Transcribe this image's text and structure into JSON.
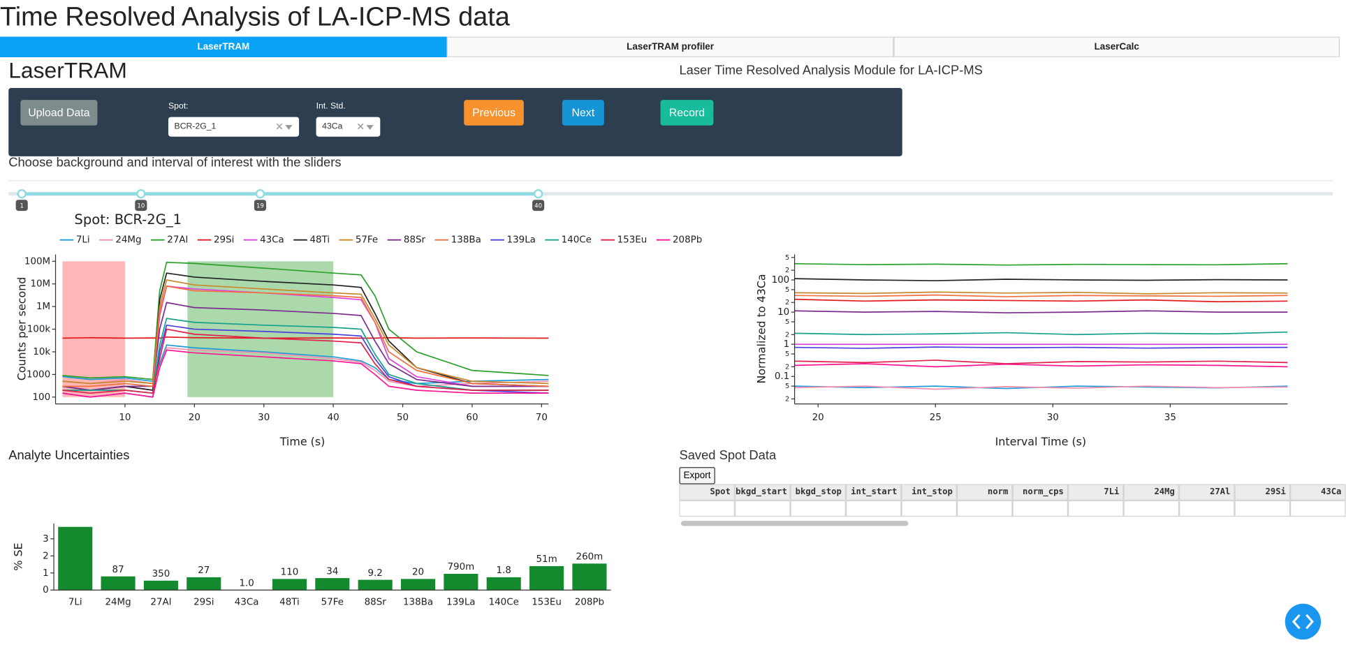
{
  "header": {
    "title": "Time Resolved Analysis of LA-ICP-MS data"
  },
  "tabs": [
    "LaserTRAM",
    "LaserTRAM profiler",
    "LaserCalc"
  ],
  "active_tab": 0,
  "module": {
    "title": "LaserTRAM",
    "subtitle": "Laser Time Resolved Analysis Module for LA-ICP-MS"
  },
  "controls": {
    "upload": "Upload Data",
    "spot_label": "Spot:",
    "spot_value": "BCR-2G_1",
    "int_std_label": "Int. Std.",
    "int_std_value": "43Ca",
    "previous": "Previous",
    "next": "Next",
    "record": "Record"
  },
  "slider": {
    "instruction": "Choose background and interval of interest with the sliders",
    "range": [
      0,
      100
    ],
    "handles": [
      1,
      10,
      19,
      40
    ]
  },
  "chart_data": [
    {
      "type": "line",
      "title": "Spot: BCR-2G_1",
      "x_label": "Time (s)",
      "y_label": "Counts per second",
      "log_y": true,
      "x": [
        1,
        5,
        10,
        14,
        15,
        16,
        20,
        30,
        40,
        44,
        46,
        48,
        52,
        60,
        71
      ],
      "xlim": [
        0,
        71
      ],
      "xticks": [
        10,
        20,
        30,
        40,
        50,
        60,
        70
      ],
      "ylim": [
        50,
        200000000
      ],
      "yticks": [
        100,
        1000,
        {
          "value": 10000,
          "label": "10k"
        },
        {
          "value": 100000,
          "label": "100k"
        },
        {
          "value": 1000000,
          "label": "1M"
        },
        {
          "value": 10000000,
          "label": "10M"
        },
        {
          "value": 100000000,
          "label": "100M"
        }
      ],
      "shaded_regions": [
        {
          "x": [
            1,
            10
          ],
          "color": "#ffb6b6"
        },
        {
          "x": [
            19,
            40
          ],
          "color": "#acd9ac"
        }
      ],
      "series": [
        {
          "name": "7Li",
          "color": "#1f9bd7",
          "values": [
            800,
            600,
            700,
            500,
            3000,
            20000,
            15000,
            10000,
            6000,
            4000,
            2000,
            600,
            400,
            500,
            600
          ]
        },
        {
          "name": "24Mg",
          "color": "#f48fb1",
          "values": [
            500,
            400,
            600,
            400,
            2000,
            15000,
            12000,
            9000,
            5000,
            3500,
            1500,
            500,
            300,
            400,
            500
          ]
        },
        {
          "name": "27Al",
          "color": "#2ca02c",
          "values": [
            900,
            700,
            800,
            600,
            5000000,
            90000000,
            80000000,
            50000000,
            30000000,
            25000000,
            3000000,
            100000,
            10000,
            1500,
            900
          ]
        },
        {
          "name": "29Si",
          "color": "#e3191c",
          "values": [
            40000,
            42000,
            40000,
            41000,
            40000,
            45000,
            42000,
            40000,
            41000,
            40000,
            40000,
            42000,
            40000,
            41000,
            40000
          ]
        },
        {
          "name": "43Ca",
          "color": "#e040e0",
          "values": [
            300,
            200,
            300,
            200,
            400000,
            8000000,
            6000000,
            4000000,
            2500000,
            2000000,
            200000,
            5000,
            800,
            300,
            300
          ]
        },
        {
          "name": "48Ti",
          "color": "#222222",
          "values": [
            300,
            200,
            300,
            200,
            2000000,
            30000000,
            20000000,
            13000000,
            9000000,
            7000000,
            500000,
            30000,
            2000,
            400,
            300
          ]
        },
        {
          "name": "57Fe",
          "color": "#c8872a",
          "values": [
            500,
            400,
            500,
            400,
            1000000,
            15000000,
            9000000,
            6000000,
            4000000,
            3500000,
            300000,
            20000,
            2000,
            500,
            400
          ]
        },
        {
          "name": "88Sr",
          "color": "#7b2d8e",
          "values": [
            300,
            200,
            300,
            300,
            100000,
            1500000,
            900000,
            700000,
            500000,
            400000,
            30000,
            3000,
            600,
            300,
            300
          ]
        },
        {
          "name": "138Ba",
          "color": "#f07040",
          "values": [
            300,
            300,
            400,
            300,
            600000,
            8000000,
            5000000,
            4000000,
            3000000,
            2500000,
            200000,
            10000,
            1500,
            400,
            300
          ]
        },
        {
          "name": "139La",
          "color": "#4a3fe0",
          "values": [
            150,
            100,
            150,
            100,
            10000,
            150000,
            100000,
            80000,
            60000,
            50000,
            5000,
            800,
            300,
            200,
            150
          ]
        },
        {
          "name": "140Ce",
          "color": "#17a08e",
          "values": [
            200,
            200,
            200,
            150,
            20000,
            300000,
            200000,
            150000,
            120000,
            100000,
            8000,
            1000,
            400,
            200,
            200
          ]
        },
        {
          "name": "153Eu",
          "color": "#e0204a",
          "values": [
            200,
            150,
            200,
            150,
            5000,
            100000,
            60000,
            40000,
            30000,
            25000,
            3000,
            600,
            300,
            200,
            200
          ]
        },
        {
          "name": "208Pb",
          "color": "#ff1493",
          "values": [
            150,
            100,
            150,
            100,
            2000,
            12000,
            9000,
            6000,
            4000,
            3000,
            1000,
            300,
            200,
            150,
            150
          ]
        }
      ]
    },
    {
      "type": "line",
      "x_label": "Interval Time (s)",
      "y_label": "Normalized to 43Ca",
      "log_y": true,
      "x": [
        19,
        22,
        25,
        28,
        31,
        34,
        37,
        40
      ],
      "xlim": [
        19,
        40
      ],
      "xticks": [
        20,
        25,
        30,
        35
      ],
      "ylim": [
        0.014,
        620
      ],
      "yticks": [
        {
          "value": 500,
          "label": "5"
        },
        {
          "value": 200,
          "label": "2"
        },
        100,
        {
          "value": 50,
          "label": "5"
        },
        {
          "value": 20,
          "label": "2"
        },
        10,
        5,
        2,
        1,
        {
          "value": 0.5,
          "label": "5"
        },
        {
          "value": 0.2,
          "label": "2"
        },
        0.1,
        {
          "value": 0.05,
          "label": "5"
        },
        {
          "value": 0.02,
          "label": "2"
        }
      ],
      "series": [
        {
          "color": "#1f9bd7",
          "values": [
            0.05,
            0.045,
            0.05,
            0.042,
            0.05,
            0.047,
            0.044,
            0.05
          ]
        },
        {
          "color": "#f48fb1",
          "values": [
            0.045,
            0.05,
            0.04,
            0.048,
            0.043,
            0.05,
            0.045,
            0.047
          ]
        },
        {
          "color": "#2ca02c",
          "values": [
            320,
            300,
            310,
            290,
            305,
            300,
            295,
            320
          ]
        },
        {
          "color": "#e3191c",
          "values": [
            25,
            22,
            24,
            23,
            22,
            24,
            21,
            22
          ]
        },
        {
          "color": "#e040e0",
          "values": [
            1,
            1,
            1,
            1,
            1,
            1,
            1,
            1
          ]
        },
        {
          "color": "#222222",
          "values": [
            110,
            100,
            95,
            105,
            100,
            98,
            102,
            100
          ]
        },
        {
          "color": "#c8872a",
          "values": [
            40,
            38,
            42,
            39,
            41,
            37,
            40,
            39
          ]
        },
        {
          "color": "#7b2d8e",
          "values": [
            11,
            10,
            10.5,
            9.5,
            10,
            11,
            10,
            10
          ]
        },
        {
          "color": "#f07040",
          "values": [
            33,
            31,
            34,
            30,
            33,
            32,
            31,
            33
          ]
        },
        {
          "color": "#4a3fe0",
          "values": [
            0.8,
            0.75,
            0.82,
            0.78,
            0.8,
            0.76,
            0.79,
            0.8
          ]
        },
        {
          "color": "#17a08e",
          "values": [
            2.2,
            2.0,
            2.1,
            2.3,
            2.0,
            2.2,
            2.1,
            2.4
          ]
        },
        {
          "color": "#e0204a",
          "values": [
            0.3,
            0.27,
            0.32,
            0.25,
            0.29,
            0.28,
            0.3,
            0.27
          ]
        },
        {
          "color": "#ff1493",
          "values": [
            0.22,
            0.25,
            0.2,
            0.24,
            0.21,
            0.23,
            0.22,
            0.2
          ]
        }
      ]
    },
    {
      "type": "bar",
      "title": "Analyte Uncertainties",
      "y_label": "% SE",
      "categories": [
        "7Li",
        "24Mg",
        "27Al",
        "29Si",
        "43Ca",
        "48Ti",
        "57Fe",
        "88Sr",
        "138Ba",
        "139La",
        "140Ce",
        "153Eu",
        "208Pb"
      ],
      "values": [
        3.7,
        0.8,
        0.55,
        0.75,
        0,
        0.65,
        0.7,
        0.6,
        0.65,
        0.95,
        0.75,
        1.4,
        1.55
      ],
      "bar_text": [
        null,
        "87",
        "350",
        "27",
        "1.0",
        "110",
        "34",
        "9.2",
        "20",
        "790m",
        "1.8",
        "51m",
        "260m"
      ],
      "ylim": [
        0,
        3.9
      ],
      "yticks": [
        0,
        1,
        2,
        3
      ],
      "color": "#138a2e"
    }
  ],
  "table": {
    "title": "Saved Spot Data",
    "export": "Export",
    "columns": [
      "Spot",
      "bkgd_start",
      "bkgd_stop",
      "int_start",
      "int_stop",
      "norm",
      "norm_cps",
      "7Li",
      "24Mg",
      "27Al",
      "29Si",
      "43Ca"
    ]
  }
}
